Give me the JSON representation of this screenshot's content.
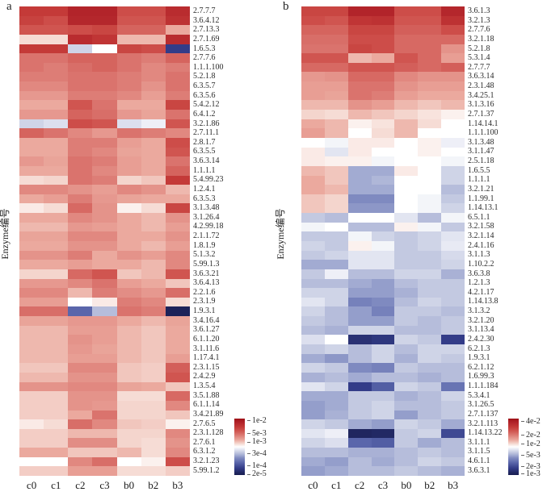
{
  "figure": {
    "background": "#ffffff",
    "text_color": "#1a1a1a"
  },
  "colormap": {
    "description": "diverging red-white-blue heatmap colormap",
    "stops": [
      [
        0,
        "#181d52"
      ],
      [
        0.04,
        "#20265f"
      ],
      [
        0.12,
        "#333c88"
      ],
      [
        0.22,
        "#5a66ab"
      ],
      [
        0.3,
        "#7f8ac0"
      ],
      [
        0.35,
        "#a2abd2"
      ],
      [
        0.4,
        "#c3c9e1"
      ],
      [
        0.45,
        "#e2e5f1"
      ],
      [
        0.5,
        "#ffffff"
      ],
      [
        0.55,
        "#f6dcd5"
      ],
      [
        0.62,
        "#eba99e"
      ],
      [
        0.7,
        "#dd7d76"
      ],
      [
        0.78,
        "#d05550"
      ],
      [
        0.85,
        "#c43a38"
      ],
      [
        0.93,
        "#b2242a"
      ],
      [
        1,
        "#9e1016"
      ]
    ]
  },
  "chart_data": [
    {
      "type": "heatmap",
      "panel_letter": "a",
      "ylabel": "Enzyme编号",
      "columns": [
        "c0",
        "c1",
        "c2",
        "c3",
        "b0",
        "b2",
        "b3"
      ],
      "rows": [
        "2.7.7.7",
        "3.6.4.12",
        "2.7.13.3",
        "2.7.1.69",
        "1.6.5.3",
        "2.7.7.6",
        "1.1.1.100",
        "5.2.1.8",
        "6.3.5.7",
        "6.3.5.6",
        "5.4.2.12",
        "6.4.1.2",
        "3.2.1.86",
        "2.7.11.1",
        "2.8.1.7",
        "6.3.5.5",
        "3.6.3.14",
        "1.1.1.1",
        "5.4.99.23",
        "1.2.4.1",
        "6.3.5.3",
        "3.1.3.48",
        "3.1.26.4",
        "4.2.99.18",
        "2.1.1.72",
        "1.8.1.9",
        "5.1.3.2",
        "5.99.1.3",
        "3.6.3.21",
        "3.6.4.13",
        "2.2.1.6",
        "2.3.1.9",
        "1.9.3.1",
        "3.4.16.4",
        "3.6.1.27",
        "6.1.1.20",
        "3.1.11.6",
        "1.17.4.1",
        "2.3.1.15",
        "2.4.2.9",
        "1.3.5.4",
        "3.5.1.88",
        "6.1.1.14",
        "3.4.21.89",
        "2.7.6.5",
        "2.3.1.128",
        "2.7.6.1",
        "6.3.1.2",
        "3.2.1.23",
        "5.99.1.2"
      ],
      "value_encoding": "normalized 0-1 colormap position (1 = max abundance dark red, 0 = min dark blue)",
      "values": [
        [
          0.85,
          0.85,
          0.93,
          0.93,
          0.8,
          0.8,
          0.9
        ],
        [
          0.83,
          0.8,
          0.92,
          0.92,
          0.78,
          0.78,
          0.88
        ],
        [
          0.78,
          0.78,
          0.8,
          0.82,
          0.75,
          0.75,
          0.62
        ],
        [
          0.55,
          0.55,
          0.9,
          0.87,
          0.6,
          0.6,
          0.9
        ],
        [
          0.85,
          0.85,
          0.42,
          0.5,
          0.82,
          0.8,
          0.12
        ],
        [
          0.72,
          0.72,
          0.75,
          0.75,
          0.72,
          0.7,
          0.75
        ],
        [
          0.72,
          0.7,
          0.73,
          0.75,
          0.72,
          0.68,
          0.7
        ],
        [
          0.7,
          0.7,
          0.72,
          0.72,
          0.7,
          0.68,
          0.72
        ],
        [
          0.68,
          0.68,
          0.72,
          0.72,
          0.7,
          0.66,
          0.72
        ],
        [
          0.65,
          0.65,
          0.7,
          0.7,
          0.68,
          0.64,
          0.7
        ],
        [
          0.62,
          0.62,
          0.78,
          0.72,
          0.62,
          0.62,
          0.82
        ],
        [
          0.65,
          0.65,
          0.75,
          0.73,
          0.65,
          0.63,
          0.72
        ],
        [
          0.42,
          0.44,
          0.8,
          0.78,
          0.44,
          0.47,
          0.78
        ],
        [
          0.75,
          0.72,
          0.68,
          0.65,
          0.72,
          0.7,
          0.68
        ],
        [
          0.62,
          0.62,
          0.7,
          0.7,
          0.64,
          0.62,
          0.8
        ],
        [
          0.62,
          0.62,
          0.7,
          0.68,
          0.63,
          0.62,
          0.78
        ],
        [
          0.65,
          0.63,
          0.72,
          0.7,
          0.64,
          0.62,
          0.72
        ],
        [
          0.62,
          0.62,
          0.72,
          0.68,
          0.64,
          0.62,
          0.75
        ],
        [
          0.55,
          0.56,
          0.72,
          0.7,
          0.56,
          0.58,
          0.85
        ],
        [
          0.68,
          0.68,
          0.66,
          0.64,
          0.68,
          0.66,
          0.6
        ],
        [
          0.62,
          0.64,
          0.7,
          0.65,
          0.63,
          0.62,
          0.62
        ],
        [
          0.53,
          0.55,
          0.74,
          0.66,
          0.52,
          0.55,
          0.82
        ],
        [
          0.62,
          0.62,
          0.68,
          0.66,
          0.62,
          0.6,
          0.66
        ],
        [
          0.6,
          0.6,
          0.65,
          0.64,
          0.62,
          0.6,
          0.64
        ],
        [
          0.63,
          0.63,
          0.68,
          0.68,
          0.62,
          0.62,
          0.66
        ],
        [
          0.62,
          0.62,
          0.66,
          0.66,
          0.62,
          0.6,
          0.64
        ],
        [
          0.66,
          0.66,
          0.7,
          0.62,
          0.66,
          0.64,
          0.68
        ],
        [
          0.62,
          0.62,
          0.64,
          0.62,
          0.62,
          0.6,
          0.68
        ],
        [
          0.56,
          0.56,
          0.74,
          0.78,
          0.58,
          0.6,
          0.78
        ],
        [
          0.65,
          0.65,
          0.68,
          0.72,
          0.64,
          0.62,
          0.58
        ],
        [
          0.68,
          0.68,
          0.6,
          0.7,
          0.67,
          0.65,
          0.73
        ],
        [
          0.64,
          0.64,
          0.5,
          0.53,
          0.7,
          0.68,
          0.55
        ],
        [
          0.73,
          0.73,
          0.22,
          0.38,
          0.72,
          0.7,
          0.02
        ],
        [
          0.63,
          0.63,
          0.65,
          0.65,
          0.62,
          0.6,
          0.63
        ],
        [
          0.6,
          0.6,
          0.64,
          0.64,
          0.6,
          0.58,
          0.62
        ],
        [
          0.6,
          0.6,
          0.66,
          0.64,
          0.6,
          0.58,
          0.62
        ],
        [
          0.6,
          0.6,
          0.65,
          0.63,
          0.6,
          0.58,
          0.62
        ],
        [
          0.6,
          0.6,
          0.64,
          0.64,
          0.6,
          0.58,
          0.64
        ],
        [
          0.58,
          0.58,
          0.68,
          0.68,
          0.58,
          0.57,
          0.76
        ],
        [
          0.6,
          0.6,
          0.66,
          0.66,
          0.58,
          0.57,
          0.78
        ],
        [
          0.66,
          0.66,
          0.68,
          0.68,
          0.63,
          0.62,
          0.58
        ],
        [
          0.57,
          0.57,
          0.66,
          0.66,
          0.55,
          0.55,
          0.74
        ],
        [
          0.57,
          0.57,
          0.66,
          0.65,
          0.56,
          0.56,
          0.68
        ],
        [
          0.57,
          0.57,
          0.62,
          0.72,
          0.56,
          0.56,
          0.58
        ],
        [
          0.53,
          0.55,
          0.73,
          0.68,
          0.58,
          0.57,
          0.52
        ],
        [
          0.57,
          0.57,
          0.6,
          0.6,
          0.56,
          0.56,
          0.68
        ],
        [
          0.57,
          0.57,
          0.67,
          0.67,
          0.56,
          0.55,
          0.66
        ],
        [
          0.62,
          0.62,
          0.58,
          0.58,
          0.6,
          0.55,
          0.68
        ],
        [
          0.5,
          0.5,
          0.68,
          0.73,
          0.5,
          0.52,
          0.8
        ],
        [
          0.57,
          0.57,
          0.64,
          0.64,
          0.55,
          0.55,
          0.57
        ]
      ],
      "legend_ticks": [
        {
          "label": "1e-2",
          "pos": 0.04
        },
        {
          "label": "5e-3",
          "pos": 0.27
        },
        {
          "label": "1e-3",
          "pos": 0.42
        },
        {
          "label": "3e-4",
          "pos": 0.63
        },
        {
          "label": "1e-4",
          "pos": 0.84
        },
        {
          "label": "2e-5",
          "pos": 0.99
        }
      ]
    },
    {
      "type": "heatmap",
      "panel_letter": "b",
      "ylabel": "Enzyme编号",
      "columns": [
        "c0",
        "c1",
        "c2",
        "c3",
        "b0",
        "b2",
        "b3"
      ],
      "rows": [
        "3.6.1.3",
        "3.2.1.3",
        "2.7.7.6",
        "3.2.1.18",
        "5.2.1.8",
        "5.3.1.4",
        "2.7.7.7",
        "3.6.3.14",
        "2.3.1.48",
        "3.4.25.1",
        "3.1.3.16",
        "2.7.1.37",
        "1.14.14.1",
        "1.1.1.100",
        "3.1.3.48",
        "3.1.1.47",
        "2.5.1.18",
        "1.6.5.5",
        "1.1.1.1",
        "3.2.1.21",
        "1.1.99.1",
        "1.14.13.1",
        "6.5.1.1",
        "3.2.1.58",
        "3.2.1.14",
        "2.4.1.16",
        "3.1.1.3",
        "1.10.2.2",
        "3.6.3.8",
        "1.2.1.3",
        "4.2.1.17",
        "1.14.13.8",
        "3.1.3.2",
        "3.2.1.20",
        "3.1.13.4",
        "2.4.2.30",
        "6.2.1.3",
        "1.9.3.1",
        "6.2.1.12",
        "1.6.99.3",
        "1.1.1.184",
        "5.3.4.1",
        "3.1.26.5",
        "2.7.1.137",
        "3.2.1.113",
        "1.14.13.22",
        "3.1.1.1",
        "3.1.1.5",
        "4.6.1.1",
        "3.6.3.1"
      ],
      "value_encoding": "normalized 0-1 colormap position (1 = max abundance dark red, 0 = min dark blue)",
      "values": [
        [
          0.82,
          0.82,
          0.93,
          0.93,
          0.8,
          0.8,
          0.92
        ],
        [
          0.8,
          0.78,
          0.87,
          0.88,
          0.78,
          0.78,
          0.88
        ],
        [
          0.75,
          0.75,
          0.82,
          0.82,
          0.76,
          0.76,
          0.8
        ],
        [
          0.73,
          0.73,
          0.8,
          0.8,
          0.74,
          0.74,
          0.74
        ],
        [
          0.72,
          0.72,
          0.82,
          0.8,
          0.74,
          0.74,
          0.66
        ],
        [
          0.78,
          0.78,
          0.6,
          0.62,
          0.78,
          0.74,
          0.64
        ],
        [
          0.74,
          0.74,
          0.78,
          0.78,
          0.76,
          0.74,
          0.76
        ],
        [
          0.65,
          0.66,
          0.74,
          0.74,
          0.68,
          0.66,
          0.66
        ],
        [
          0.64,
          0.64,
          0.72,
          0.72,
          0.66,
          0.64,
          0.64
        ],
        [
          0.64,
          0.63,
          0.72,
          0.7,
          0.64,
          0.62,
          0.62
        ],
        [
          0.6,
          0.6,
          0.66,
          0.64,
          0.6,
          0.58,
          0.6
        ],
        [
          0.56,
          0.55,
          0.6,
          0.58,
          0.56,
          0.54,
          0.52
        ],
        [
          0.62,
          0.6,
          0.52,
          0.54,
          0.6,
          0.55,
          0.5
        ],
        [
          0.64,
          0.6,
          0.5,
          0.55,
          0.6,
          0.5,
          0.5
        ],
        [
          0.5,
          0.48,
          0.53,
          0.53,
          0.5,
          0.52,
          0.47
        ],
        [
          0.53,
          0.45,
          0.53,
          0.5,
          0.5,
          0.52,
          0.5
        ],
        [
          0.53,
          0.52,
          0.52,
          0.48,
          0.5,
          0.5,
          0.48
        ],
        [
          0.6,
          0.58,
          0.35,
          0.35,
          0.53,
          0.5,
          0.42
        ],
        [
          0.62,
          0.58,
          0.35,
          0.37,
          0.5,
          0.5,
          0.42
        ],
        [
          0.62,
          0.6,
          0.35,
          0.35,
          0.5,
          0.5,
          0.38
        ],
        [
          0.58,
          0.56,
          0.3,
          0.3,
          0.5,
          0.48,
          0.4
        ],
        [
          0.58,
          0.56,
          0.32,
          0.32,
          0.5,
          0.48,
          0.42
        ],
        [
          0.4,
          0.38,
          0.5,
          0.5,
          0.45,
          0.38,
          0.48
        ],
        [
          0.48,
          0.5,
          0.38,
          0.38,
          0.52,
          0.48,
          0.4
        ],
        [
          0.4,
          0.4,
          0.48,
          0.42,
          0.4,
          0.42,
          0.45
        ],
        [
          0.42,
          0.4,
          0.52,
          0.48,
          0.4,
          0.42,
          0.46
        ],
        [
          0.4,
          0.42,
          0.45,
          0.45,
          0.4,
          0.4,
          0.43
        ],
        [
          0.35,
          0.35,
          0.45,
          0.45,
          0.4,
          0.4,
          0.42
        ],
        [
          0.4,
          0.47,
          0.38,
          0.38,
          0.42,
          0.42,
          0.36
        ],
        [
          0.38,
          0.38,
          0.35,
          0.33,
          0.38,
          0.4,
          0.4
        ],
        [
          0.42,
          0.42,
          0.33,
          0.33,
          0.36,
          0.4,
          0.4
        ],
        [
          0.45,
          0.42,
          0.28,
          0.3,
          0.38,
          0.42,
          0.4
        ],
        [
          0.42,
          0.38,
          0.33,
          0.28,
          0.4,
          0.4,
          0.38
        ],
        [
          0.4,
          0.38,
          0.33,
          0.33,
          0.4,
          0.38,
          0.4
        ],
        [
          0.38,
          0.36,
          0.42,
          0.42,
          0.38,
          0.38,
          0.4
        ],
        [
          0.44,
          0.5,
          0.08,
          0.1,
          0.42,
          0.4,
          0.12
        ],
        [
          0.4,
          0.42,
          0.38,
          0.42,
          0.38,
          0.42,
          0.42
        ],
        [
          0.35,
          0.32,
          0.38,
          0.42,
          0.36,
          0.42,
          0.4
        ],
        [
          0.42,
          0.4,
          0.3,
          0.28,
          0.4,
          0.38,
          0.38
        ],
        [
          0.36,
          0.38,
          0.35,
          0.38,
          0.38,
          0.36,
          0.38
        ],
        [
          0.45,
          0.42,
          0.12,
          0.2,
          0.42,
          0.4,
          0.25
        ],
        [
          0.35,
          0.35,
          0.4,
          0.4,
          0.36,
          0.38,
          0.42
        ],
        [
          0.33,
          0.35,
          0.4,
          0.42,
          0.38,
          0.38,
          0.4
        ],
        [
          0.33,
          0.36,
          0.4,
          0.42,
          0.33,
          0.38,
          0.4
        ],
        [
          0.42,
          0.4,
          0.35,
          0.33,
          0.42,
          0.4,
          0.35
        ],
        [
          0.45,
          0.47,
          0.04,
          0.05,
          0.4,
          0.42,
          0.15
        ],
        [
          0.42,
          0.44,
          0.22,
          0.2,
          0.4,
          0.35,
          0.38
        ],
        [
          0.38,
          0.38,
          0.36,
          0.36,
          0.38,
          0.4,
          0.38
        ],
        [
          0.35,
          0.33,
          0.38,
          0.35,
          0.38,
          0.42,
          0.4
        ],
        [
          0.33,
          0.35,
          0.38,
          0.38,
          0.4,
          0.38,
          0.36
        ]
      ],
      "legend_ticks": [
        {
          "label": "4e-2",
          "pos": 0.05
        },
        {
          "label": "2e-2",
          "pos": 0.3
        },
        {
          "label": "1e-2",
          "pos": 0.45
        },
        {
          "label": "5e-3",
          "pos": 0.66
        },
        {
          "label": "2e-3",
          "pos": 0.85
        },
        {
          "label": "1e-3",
          "pos": 0.98
        }
      ]
    }
  ]
}
